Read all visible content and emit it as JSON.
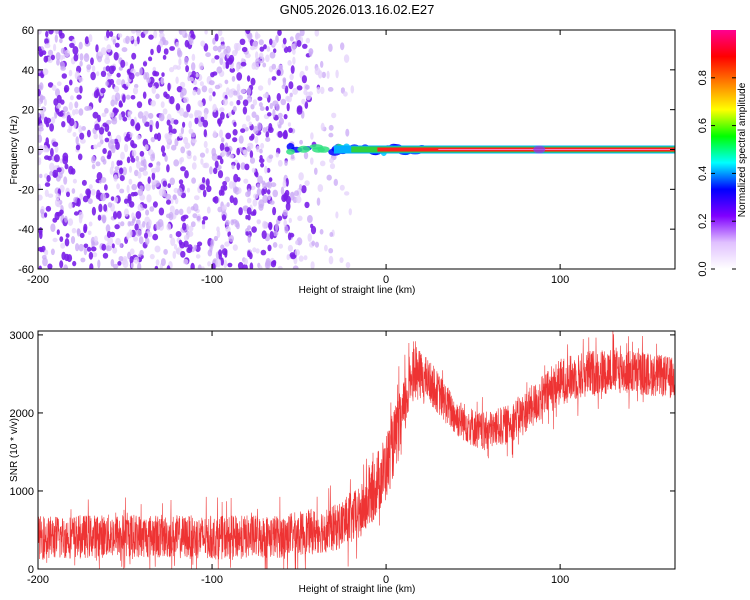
{
  "title": "GN05.2026.013.16.02.E27",
  "chart_data": [
    {
      "type": "heatmap",
      "xlabel": "Height of straight line (km)",
      "ylabel": "Frequency (Hz)",
      "xlim": [
        -200,
        166
      ],
      "ylim": [
        -60,
        60
      ],
      "xticks": [
        -200,
        -100,
        0,
        100
      ],
      "yticks": [
        -60,
        -40,
        -20,
        0,
        20,
        40,
        60
      ],
      "grid": false,
      "colorbar": {
        "label": "Normalized spectral amplitude",
        "range": [
          0,
          1
        ],
        "ticks": [
          "0.0",
          "0.2",
          "0.4",
          "0.6",
          "0.8"
        ],
        "colors": [
          "#ffffff",
          "#e0c0ff",
          "#8000ff",
          "#0000ff",
          "#00ffff",
          "#00ff00",
          "#ffff00",
          "#ff8000",
          "#ff0000",
          "#ff0090"
        ]
      },
      "features": {
        "noise_region_x": [
          -200,
          -35
        ],
        "noise_color": "#7a1fe8",
        "main_line_freq_hz": 0,
        "main_line_x": [
          -55,
          166
        ],
        "line_core_amplitude": 0.95
      }
    },
    {
      "type": "line",
      "xlabel": "Height of straight line (km)",
      "ylabel": "SNR (10 * v/v)",
      "xlim": [
        -200,
        166
      ],
      "ylim": [
        0,
        3050
      ],
      "xticks": [
        -200,
        -100,
        0,
        100
      ],
      "yticks": [
        0,
        1000,
        2000,
        3000
      ],
      "grid": false,
      "series": [
        {
          "color": "#ee3333",
          "x": [
            -200,
            -150,
            -100,
            -60,
            -30,
            -15,
            0,
            10,
            15,
            25,
            40,
            55,
            70,
            85,
            100,
            115,
            130,
            150,
            166
          ],
          "y": [
            400,
            430,
            400,
            420,
            520,
            700,
            1300,
            2000,
            2550,
            2400,
            1950,
            1750,
            1850,
            2100,
            2400,
            2500,
            2550,
            2500,
            2450
          ],
          "spread": [
            280,
            280,
            280,
            280,
            300,
            350,
            450,
            400,
            350,
            280,
            250,
            250,
            250,
            280,
            300,
            300,
            300,
            280,
            260
          ]
        }
      ]
    }
  ]
}
